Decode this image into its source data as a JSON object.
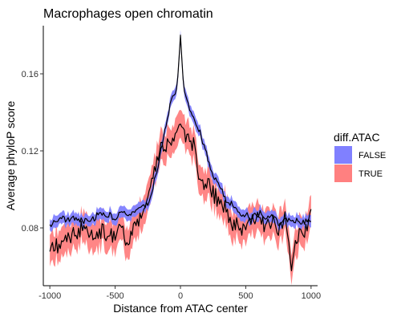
{
  "chart_data": {
    "type": "line",
    "title": "Macrophages open chromatin",
    "xlabel": "Distance from ATAC center",
    "ylabel": "Average phyloP score",
    "xlim": [
      -1050,
      1050
    ],
    "ylim": [
      0.05,
      0.185
    ],
    "x_ticks": [
      -1000,
      -500,
      0,
      500,
      1000
    ],
    "x_tick_labels": [
      "-1000",
      "-500",
      "0",
      "500",
      "1000"
    ],
    "y_ticks": [
      0.08,
      0.12,
      0.16
    ],
    "y_tick_labels": [
      "0.08",
      "0.12",
      "0.16"
    ],
    "grid": false,
    "legend_position": "right",
    "legend_title": "diff.ATAC",
    "series": [
      {
        "name": "FALSE",
        "ribbon_color": "#8080ff",
        "line_color": "#000000",
        "x": [
          -1000,
          -950,
          -900,
          -850,
          -800,
          -750,
          -700,
          -650,
          -600,
          -550,
          -500,
          -450,
          -400,
          -350,
          -300,
          -250,
          -200,
          -150,
          -100,
          -50,
          -25,
          0,
          25,
          50,
          100,
          150,
          200,
          250,
          300,
          350,
          400,
          450,
          500,
          550,
          600,
          650,
          700,
          750,
          800,
          850,
          900,
          950,
          1000
        ],
        "y": [
          0.081,
          0.084,
          0.085,
          0.084,
          0.086,
          0.084,
          0.083,
          0.086,
          0.087,
          0.087,
          0.085,
          0.09,
          0.086,
          0.088,
          0.09,
          0.093,
          0.104,
          0.12,
          0.138,
          0.15,
          0.153,
          0.18,
          0.152,
          0.146,
          0.138,
          0.13,
          0.118,
          0.108,
          0.101,
          0.095,
          0.092,
          0.087,
          0.087,
          0.085,
          0.088,
          0.085,
          0.086,
          0.083,
          0.084,
          0.085,
          0.083,
          0.083,
          0.084
        ],
        "ribbon_halfwidth": 0.0025
      },
      {
        "name": "TRUE",
        "ribbon_color": "#ff8080",
        "line_color": "#000000",
        "x": [
          -1000,
          -950,
          -900,
          -850,
          -800,
          -750,
          -700,
          -650,
          -600,
          -550,
          -500,
          -450,
          -400,
          -350,
          -300,
          -250,
          -200,
          -150,
          -100,
          -50,
          0,
          50,
          100,
          150,
          200,
          250,
          300,
          350,
          400,
          450,
          500,
          550,
          600,
          650,
          700,
          750,
          800,
          850,
          900,
          950,
          1000
        ],
        "y": [
          0.072,
          0.07,
          0.076,
          0.074,
          0.078,
          0.08,
          0.075,
          0.077,
          0.079,
          0.076,
          0.074,
          0.08,
          0.072,
          0.083,
          0.087,
          0.097,
          0.11,
          0.12,
          0.125,
          0.128,
          0.134,
          0.127,
          0.123,
          0.106,
          0.103,
          0.098,
          0.094,
          0.089,
          0.083,
          0.08,
          0.078,
          0.083,
          0.086,
          0.08,
          0.083,
          0.08,
          0.085,
          0.061,
          0.075,
          0.079,
          0.088
        ],
        "ribbon_halfwidth": 0.0065
      }
    ]
  }
}
